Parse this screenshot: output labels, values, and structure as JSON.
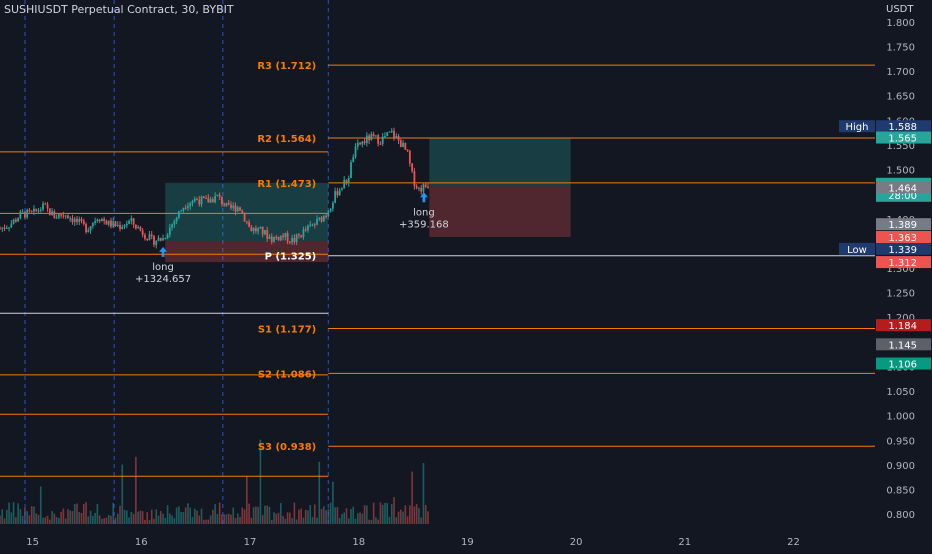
{
  "header": {
    "title": "SUSHIUSDT Perpetual Contract, 30, BYBIT"
  },
  "price_axis": {
    "currency": "USDT",
    "ticks": [
      "1.800",
      "1.750",
      "1.700",
      "1.650",
      "1.600",
      "1.550",
      "1.500",
      "1.450",
      "1.400",
      "1.350",
      "1.300",
      "1.250",
      "1.200",
      "1.150",
      "1.100",
      "1.050",
      "1.000",
      "0.950",
      "0.900",
      "0.850",
      "0.800"
    ]
  },
  "time_axis": {
    "ticks": [
      "15",
      "16",
      "17",
      "18",
      "19",
      "20",
      "21",
      "22"
    ]
  },
  "colors": {
    "background": "#131722",
    "up": "#26a69a",
    "down": "#ef5350",
    "pivot_level": "#f57c00",
    "pivot_p": "#d1d4dc",
    "session_line": "#2962ff",
    "entry_arrow": "#2196f3"
  },
  "chart_data": {
    "type": "candlestick",
    "symbol": "SUSHIUSDT",
    "interval": "30",
    "exchange": "BYBIT",
    "ylim": [
      0.78,
      1.82
    ],
    "x_unit": "day",
    "xlim": [
      14.7,
      22.75
    ],
    "pivot_levels": [
      {
        "label": "R3 (1.712)",
        "value": 1.712
      },
      {
        "label": "R2 (1.564)",
        "value": 1.564
      },
      {
        "label": "R1 (1.473)",
        "value": 1.473
      },
      {
        "label": "P (1.325)",
        "value": 1.325
      },
      {
        "label": "S1 (1.177)",
        "value": 1.177
      },
      {
        "label": "S2 (1.086)",
        "value": 1.086
      },
      {
        "label": "S3 (0.938)",
        "value": 0.938
      }
    ],
    "prev_period_levels": [
      1.536,
      1.411,
      1.328,
      1.208,
      1.083,
      1.003,
      0.877
    ],
    "session_separators_day": [
      14.93,
      15.75,
      16.75,
      17.72
    ],
    "trades": [
      {
        "side": "long",
        "label": "long",
        "amount": "+1324.657",
        "entry_day": 16.2,
        "entry": 1.355,
        "zone_from_day": 16.22,
        "zone_to_day": 17.72,
        "target": 1.473,
        "stop": 1.312
      },
      {
        "side": "long",
        "label": "long",
        "amount": "+359.168",
        "entry_day": 18.6,
        "entry": 1.466,
        "zone_from_day": 18.65,
        "zone_to_day": 19.95,
        "target": 1.565,
        "stop": 1.363
      }
    ],
    "high": {
      "label": "High",
      "value": "1.588"
    },
    "low": {
      "label": "Low",
      "value": "1.339"
    },
    "price_tags": [
      {
        "value": "1.565",
        "color": "#26a69a"
      },
      {
        "value": "1.471",
        "color": "#26a69a",
        "countdown": "28:00"
      },
      {
        "value": "1.466",
        "color": "#26a69a"
      },
      {
        "value": "1.464",
        "color": "#787b86"
      },
      {
        "value": "1.389",
        "color": "#787b86"
      },
      {
        "value": "1.363",
        "color": "#ef5350"
      },
      {
        "value": "1.312",
        "color": "#ef5350"
      },
      {
        "value": "1.184",
        "color": "#b71c1c"
      },
      {
        "value": "1.145",
        "color": "#5d606b"
      },
      {
        "value": "1.106",
        "color": "#089981"
      }
    ],
    "price_path": [
      [
        14.7,
        1.38
      ],
      [
        14.8,
        1.39
      ],
      [
        14.9,
        1.41
      ],
      [
        15.0,
        1.41
      ],
      [
        15.1,
        1.425
      ],
      [
        15.2,
        1.405
      ],
      [
        15.3,
        1.41
      ],
      [
        15.4,
        1.395
      ],
      [
        15.5,
        1.38
      ],
      [
        15.6,
        1.405
      ],
      [
        15.7,
        1.39
      ],
      [
        15.8,
        1.385
      ],
      [
        15.9,
        1.395
      ],
      [
        16.0,
        1.375
      ],
      [
        16.1,
        1.355
      ],
      [
        16.2,
        1.36
      ],
      [
        16.3,
        1.395
      ],
      [
        16.4,
        1.43
      ],
      [
        16.5,
        1.44
      ],
      [
        16.6,
        1.435
      ],
      [
        16.7,
        1.445
      ],
      [
        16.8,
        1.42
      ],
      [
        16.9,
        1.425
      ],
      [
        17.0,
        1.38
      ],
      [
        17.1,
        1.375
      ],
      [
        17.2,
        1.36
      ],
      [
        17.3,
        1.365
      ],
      [
        17.4,
        1.355
      ],
      [
        17.5,
        1.375
      ],
      [
        17.6,
        1.39
      ],
      [
        17.7,
        1.41
      ],
      [
        17.8,
        1.455
      ],
      [
        17.9,
        1.48
      ],
      [
        17.95,
        1.53
      ],
      [
        18.0,
        1.55
      ],
      [
        18.1,
        1.565
      ],
      [
        18.2,
        1.56
      ],
      [
        18.3,
        1.575
      ],
      [
        18.4,
        1.55
      ],
      [
        18.45,
        1.53
      ],
      [
        18.5,
        1.48
      ],
      [
        18.55,
        1.46
      ],
      [
        18.6,
        1.465
      ],
      [
        18.65,
        1.471
      ]
    ]
  }
}
